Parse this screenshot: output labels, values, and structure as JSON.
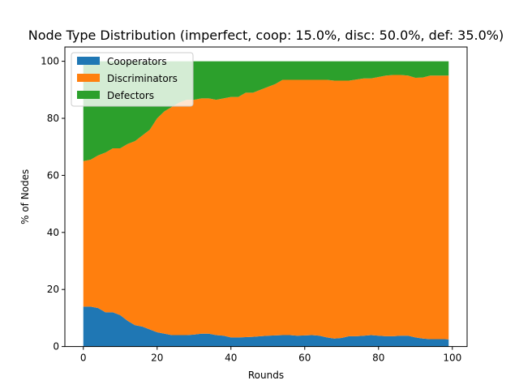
{
  "chart_data": {
    "type": "area",
    "stacked": true,
    "title": "Node Type Distribution (imperfect, coop: 15.0%, disc: 50.0%, def: 35.0%)",
    "xlabel": "Rounds",
    "ylabel": "% of Nodes",
    "xlim": [
      -5,
      104
    ],
    "ylim": [
      0,
      105
    ],
    "xticks": [
      0,
      20,
      40,
      60,
      80,
      100
    ],
    "yticks": [
      0,
      20,
      40,
      60,
      80,
      100
    ],
    "grid": false,
    "legend": "top-left",
    "x": [
      0,
      2,
      4,
      6,
      8,
      10,
      12,
      14,
      16,
      18,
      20,
      22,
      24,
      26,
      28,
      30,
      32,
      34,
      36,
      38,
      40,
      42,
      44,
      46,
      48,
      50,
      52,
      54,
      56,
      58,
      60,
      62,
      64,
      66,
      68,
      70,
      72,
      74,
      76,
      78,
      80,
      82,
      84,
      86,
      88,
      90,
      92,
      94,
      96,
      98,
      99
    ],
    "series": [
      {
        "name": "Cooperators",
        "color": "#1f77b4",
        "values": [
          14.0,
          14.0,
          13.5,
          12.0,
          12.0,
          11.0,
          9.0,
          7.5,
          7.0,
          6.0,
          5.0,
          4.5,
          4.0,
          4.0,
          4.0,
          4.2,
          4.5,
          4.5,
          4.0,
          3.8,
          3.2,
          3.2,
          3.3,
          3.4,
          3.6,
          3.8,
          3.9,
          4.0,
          4.0,
          3.8,
          3.9,
          4.0,
          3.8,
          3.2,
          2.8,
          3.0,
          3.6,
          3.6,
          3.8,
          4.0,
          3.8,
          3.6,
          3.6,
          3.8,
          3.8,
          3.2,
          2.8,
          2.6,
          2.6,
          2.6,
          2.5
        ]
      },
      {
        "name": "Discriminators",
        "color": "#ff7f0e",
        "values": [
          51.0,
          51.5,
          53.5,
          56.0,
          57.5,
          58.5,
          62.0,
          64.5,
          67.0,
          70.0,
          75.0,
          78.0,
          80.0,
          81.5,
          82.5,
          82.3,
          82.5,
          82.5,
          82.5,
          83.2,
          84.3,
          84.3,
          85.7,
          85.6,
          86.4,
          87.2,
          88.1,
          89.5,
          89.5,
          89.7,
          89.6,
          89.5,
          89.7,
          90.3,
          90.4,
          90.2,
          89.6,
          90.0,
          90.2,
          90.0,
          90.7,
          91.4,
          91.6,
          91.4,
          91.2,
          91.0,
          91.5,
          92.4,
          92.4,
          92.4,
          92.5
        ]
      },
      {
        "name": "Defectors",
        "color": "#2ca02c",
        "values": [
          35.0,
          34.5,
          33.0,
          32.0,
          30.5,
          30.5,
          29.0,
          28.0,
          26.0,
          24.0,
          20.0,
          17.5,
          16.0,
          14.5,
          13.5,
          13.5,
          13.0,
          13.0,
          13.5,
          13.0,
          12.5,
          12.5,
          11.0,
          11.0,
          10.0,
          9.0,
          8.0,
          6.5,
          6.5,
          6.5,
          6.5,
          6.5,
          6.5,
          6.5,
          6.8,
          6.8,
          6.8,
          6.4,
          6.0,
          6.0,
          5.5,
          5.0,
          4.8,
          4.8,
          5.0,
          5.8,
          5.7,
          5.0,
          5.0,
          5.0,
          5.0
        ]
      }
    ]
  }
}
